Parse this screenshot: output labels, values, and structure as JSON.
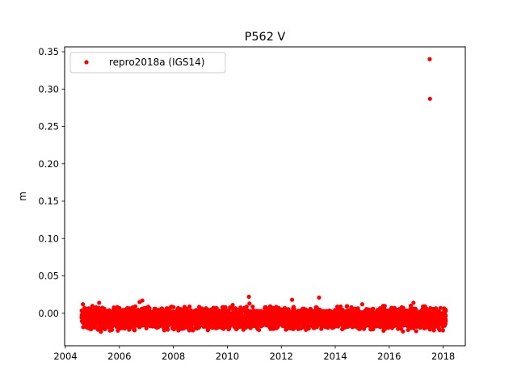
{
  "chart_data": {
    "type": "scatter",
    "title": "P562 V",
    "xlabel": "",
    "ylabel": "m",
    "xlim": [
      2003.97,
      2018.82
    ],
    "ylim": [
      -0.0435,
      0.3565
    ],
    "xticks": [
      2004,
      2006,
      2008,
      2010,
      2012,
      2014,
      2016,
      2018
    ],
    "xtick_labels": [
      "2004",
      "2006",
      "2008",
      "2010",
      "2012",
      "2014",
      "2016",
      "2018"
    ],
    "yticks": [
      0.0,
      0.05,
      0.1,
      0.15,
      0.2,
      0.25,
      0.3,
      0.35
    ],
    "ytick_labels": [
      "0.00",
      "0.05",
      "0.10",
      "0.15",
      "0.20",
      "0.25",
      "0.30",
      "0.35"
    ],
    "legend_position": "upper-left",
    "grid": false,
    "series": [
      {
        "name": "repro2018a (IGS14)",
        "color": "#ff0000",
        "marker": "circle",
        "x_range": [
          2004.6,
          2018.1
        ],
        "y_typical_range": [
          -0.022,
          0.008
        ],
        "points": [
          [
            2004.62,
            0.003
          ],
          [
            2004.65,
            0.012
          ],
          [
            2004.7,
            -0.004
          ],
          [
            2004.8,
            0.006
          ],
          [
            2004.95,
            -0.02
          ],
          [
            2005.05,
            -0.015
          ],
          [
            2005.2,
            -0.005
          ],
          [
            2005.25,
            0.014
          ],
          [
            2005.4,
            -0.012
          ],
          [
            2005.6,
            -0.018
          ],
          [
            2005.8,
            -0.008
          ],
          [
            2006.0,
            0.007
          ],
          [
            2006.2,
            -0.014
          ],
          [
            2006.3,
            -0.002
          ],
          [
            2006.5,
            0.008
          ],
          [
            2006.7,
            -0.01
          ],
          [
            2006.75,
            0.015
          ],
          [
            2006.85,
            0.017
          ],
          [
            2007.0,
            -0.02
          ],
          [
            2007.1,
            -0.006
          ],
          [
            2007.3,
            0.006
          ],
          [
            2007.5,
            -0.016
          ],
          [
            2007.7,
            -0.004
          ],
          [
            2007.9,
            0.008
          ],
          [
            2008.0,
            -0.012
          ],
          [
            2008.2,
            0.005
          ],
          [
            2008.4,
            -0.018
          ],
          [
            2008.6,
            0.009
          ],
          [
            2008.8,
            -0.006
          ],
          [
            2009.0,
            -0.014
          ],
          [
            2009.2,
            0.004
          ],
          [
            2009.4,
            -0.01
          ],
          [
            2009.6,
            0.007
          ],
          [
            2009.8,
            -0.016
          ],
          [
            2010.0,
            -0.005
          ],
          [
            2010.2,
            0.011
          ],
          [
            2010.4,
            -0.019
          ],
          [
            2010.6,
            -0.008
          ],
          [
            2010.8,
            0.022
          ],
          [
            2010.82,
            0.013
          ],
          [
            2011.0,
            -0.017
          ],
          [
            2011.2,
            -0.004
          ],
          [
            2011.4,
            0.008
          ],
          [
            2011.6,
            -0.021
          ],
          [
            2011.8,
            -0.01
          ],
          [
            2012.0,
            0.004
          ],
          [
            2012.2,
            -0.018
          ],
          [
            2012.4,
            0.018
          ],
          [
            2012.6,
            -0.012
          ],
          [
            2012.8,
            0.006
          ],
          [
            2013.0,
            -0.02
          ],
          [
            2013.2,
            -0.007
          ],
          [
            2013.4,
            0.021
          ],
          [
            2013.6,
            -0.015
          ],
          [
            2013.8,
            0.003
          ],
          [
            2014.0,
            -0.011
          ],
          [
            2014.2,
            0.009
          ],
          [
            2014.4,
            -0.006
          ],
          [
            2014.6,
            0.008
          ],
          [
            2014.8,
            -0.013
          ],
          [
            2015.0,
            0.012
          ],
          [
            2015.2,
            -0.009
          ],
          [
            2015.4,
            0.006
          ],
          [
            2015.6,
            -0.016
          ],
          [
            2015.8,
            0.002
          ],
          [
            2016.0,
            -0.012
          ],
          [
            2016.2,
            0.007
          ],
          [
            2016.4,
            -0.018
          ],
          [
            2016.6,
            -0.004
          ],
          [
            2016.8,
            0.01
          ],
          [
            2016.9,
            0.014
          ],
          [
            2017.0,
            -0.024
          ],
          [
            2017.1,
            -0.01
          ],
          [
            2017.2,
            0.003
          ],
          [
            2017.3,
            -0.02
          ],
          [
            2017.4,
            -0.006
          ],
          [
            2017.5,
            0.34
          ],
          [
            2017.51,
            0.287
          ],
          [
            2017.6,
            -0.014
          ],
          [
            2017.7,
            0.004
          ],
          [
            2017.8,
            -0.018
          ],
          [
            2017.9,
            0.007
          ],
          [
            2018.0,
            -0.012
          ],
          [
            2018.05,
            -0.016
          ]
        ]
      }
    ]
  }
}
